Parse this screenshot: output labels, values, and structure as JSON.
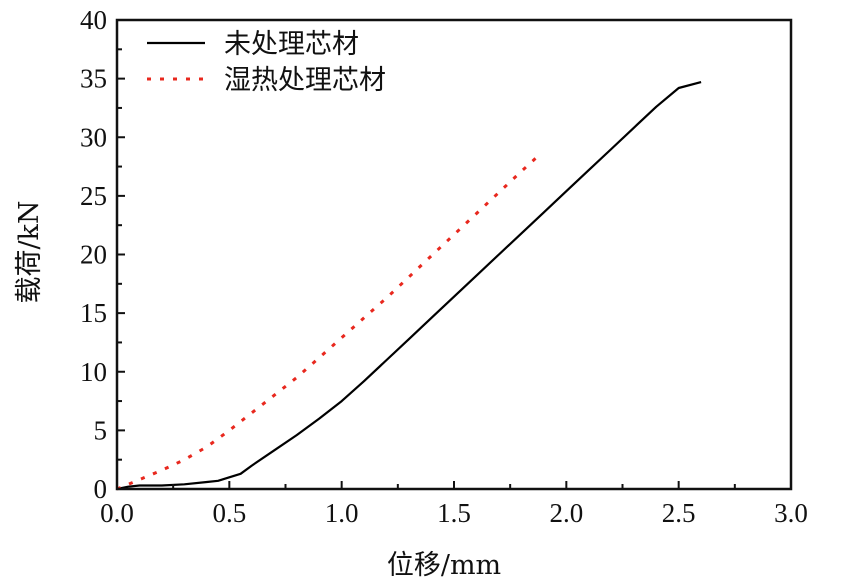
{
  "chart_data": {
    "type": "line",
    "title": "",
    "xlabel": "位移/mm",
    "ylabel": "载荷/kN",
    "xlim": [
      0.0,
      3.0
    ],
    "ylim": [
      0,
      40
    ],
    "xticks": [
      "0.0",
      "0.5",
      "1.0",
      "1.5",
      "2.0",
      "2.5",
      "3.0"
    ],
    "yticks": [
      "0",
      "5",
      "10",
      "15",
      "20",
      "25",
      "30",
      "35",
      "40"
    ],
    "legend_position": "top-left",
    "grid": false,
    "series": [
      {
        "name": "未处理芯材",
        "color": "#000000",
        "style": "solid",
        "x": [
          0.0,
          0.05,
          0.1,
          0.2,
          0.3,
          0.4,
          0.45,
          0.5,
          0.55,
          0.6,
          0.7,
          0.8,
          0.9,
          1.0,
          1.1,
          1.2,
          1.3,
          1.4,
          1.5,
          1.6,
          1.7,
          1.8,
          1.9,
          2.0,
          2.1,
          2.2,
          2.3,
          2.4,
          2.5,
          2.6
        ],
        "y": [
          0.0,
          0.2,
          0.3,
          0.3,
          0.4,
          0.6,
          0.7,
          1.0,
          1.3,
          2.0,
          3.3,
          4.6,
          6.0,
          7.5,
          9.2,
          11.0,
          12.8,
          14.6,
          16.4,
          18.2,
          20.0,
          21.8,
          23.6,
          25.4,
          27.2,
          29.0,
          30.8,
          32.6,
          34.2,
          34.7
        ]
      },
      {
        "name": "湿热处理芯材",
        "color": "#e8281e",
        "style": "dash-dot",
        "x": [
          0.0,
          0.1,
          0.2,
          0.3,
          0.4,
          0.5,
          0.6,
          0.7,
          0.8,
          0.9,
          1.0,
          1.1,
          1.2,
          1.3,
          1.4,
          1.5,
          1.6,
          1.7,
          1.8,
          1.88
        ],
        "y": [
          0.0,
          0.8,
          1.6,
          2.5,
          3.6,
          5.0,
          6.5,
          8.0,
          9.5,
          11.2,
          12.9,
          14.6,
          16.3,
          18.1,
          19.9,
          21.7,
          23.5,
          25.3,
          27.1,
          28.5
        ]
      }
    ]
  }
}
